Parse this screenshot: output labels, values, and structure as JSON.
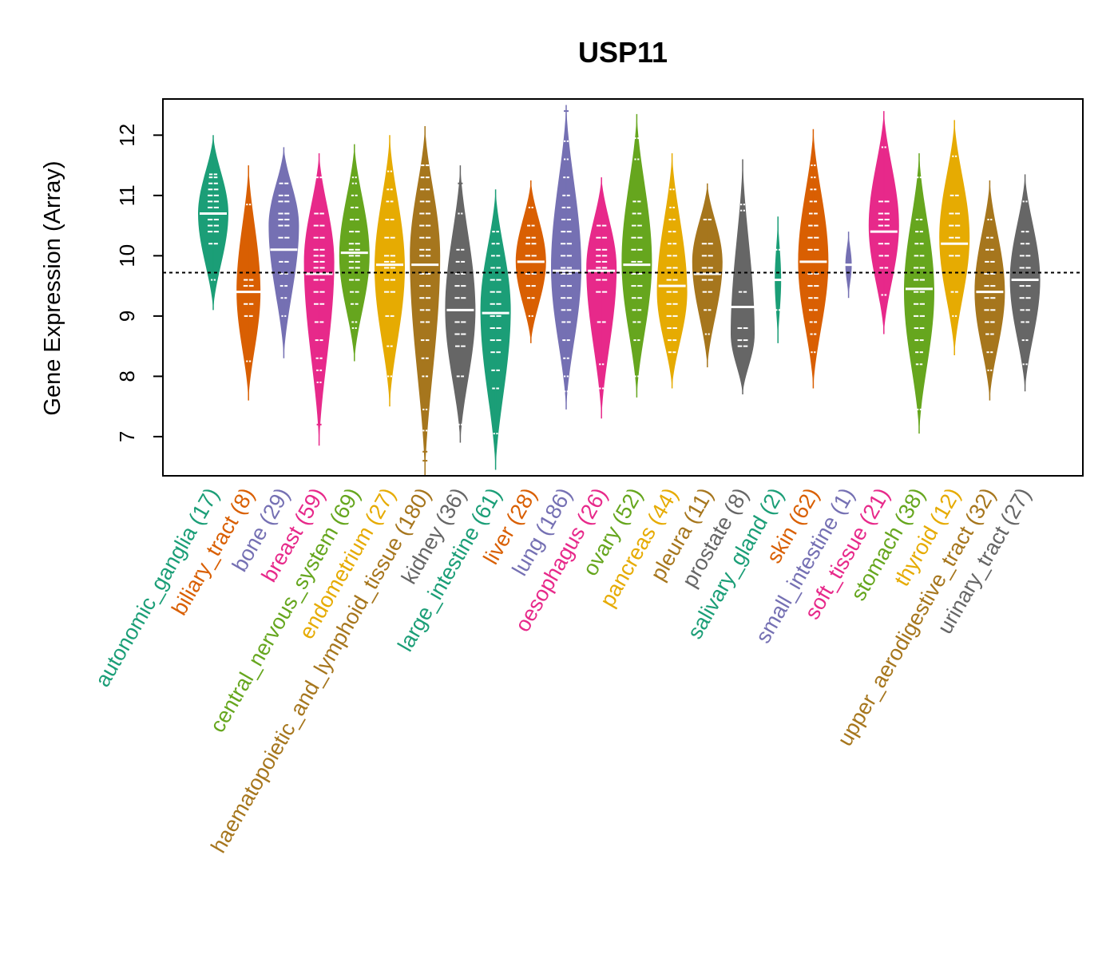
{
  "chart_data": {
    "type": "beanplot",
    "title": "USP11",
    "ylabel": "Gene Expression (Array)",
    "xlabel": "",
    "ylim": [
      6.35,
      12.6
    ],
    "yticks": [
      7,
      8,
      9,
      10,
      11,
      12
    ],
    "reference_line": 9.72,
    "categories": [
      {
        "name": "autonomic_ganglia",
        "n": 17,
        "label": "autonomic_ganglia (17)",
        "color": "#1B9E77",
        "min": 9.1,
        "max": 12.0,
        "mode": 10.7,
        "median": 10.7,
        "points": [
          9.6,
          10.2,
          10.4,
          10.5,
          10.6,
          10.7,
          10.8,
          10.9,
          11.0,
          11.1,
          11.2,
          11.3,
          11.35
        ]
      },
      {
        "name": "biliary_tract",
        "n": 8,
        "label": "biliary_tract (8)",
        "color": "#D95F02",
        "min": 7.6,
        "max": 11.5,
        "mode": 9.4,
        "median": 9.4,
        "points": [
          8.25,
          9.0,
          9.2,
          9.4,
          9.5,
          9.6,
          10.85
        ]
      },
      {
        "name": "bone",
        "n": 29,
        "label": "bone (29)",
        "color": "#7570B3",
        "min": 8.3,
        "max": 11.8,
        "mode": 10.5,
        "median": 10.1,
        "points": [
          9.0,
          9.3,
          9.5,
          9.7,
          9.9,
          10.1,
          10.3,
          10.5,
          10.6,
          10.7,
          10.9,
          11.0,
          11.2
        ]
      },
      {
        "name": "breast",
        "n": 59,
        "label": "breast (59)",
        "color": "#E7298A",
        "min": 6.85,
        "max": 11.7,
        "mode": 9.9,
        "median": 9.7,
        "points": [
          7.2,
          7.9,
          8.1,
          8.3,
          8.6,
          8.9,
          9.2,
          9.4,
          9.6,
          9.8,
          9.9,
          10.0,
          10.1,
          10.3,
          10.5,
          10.7,
          11.3
        ]
      },
      {
        "name": "central_nervous_system",
        "n": 69,
        "label": "central_nervous_system (69)",
        "color": "#66A61E",
        "min": 8.25,
        "max": 11.85,
        "mode": 10.0,
        "median": 10.05,
        "points": [
          8.8,
          8.9,
          9.2,
          9.4,
          9.6,
          9.8,
          9.9,
          10.0,
          10.1,
          10.2,
          10.4,
          10.6,
          10.8,
          11.0,
          11.2,
          11.3
        ]
      },
      {
        "name": "endometrium",
        "n": 27,
        "label": "endometrium (27)",
        "color": "#E6AB02",
        "min": 7.5,
        "max": 12.0,
        "mode": 9.8,
        "median": 9.85,
        "points": [
          8.0,
          8.5,
          9.0,
          9.4,
          9.6,
          9.8,
          9.9,
          10.0,
          10.3,
          10.6,
          10.9,
          11.1,
          11.4
        ]
      },
      {
        "name": "haematopoietic_and_lymphoid_tissue",
        "n": 180,
        "label": "haematopoietic_and_lymphoid_tissue (180)",
        "color": "#A6761D",
        "min": 6.35,
        "max": 12.15,
        "mode": 10.0,
        "median": 9.85,
        "points": [
          6.6,
          6.75,
          7.1,
          7.45,
          8.0,
          8.3,
          8.6,
          8.9,
          9.1,
          9.3,
          9.5,
          9.7,
          9.85,
          10.0,
          10.1,
          10.3,
          10.5,
          10.7,
          10.9,
          11.1,
          11.3,
          11.5
        ]
      },
      {
        "name": "kidney",
        "n": 36,
        "label": "kidney (36)",
        "color": "#666666",
        "min": 6.9,
        "max": 11.5,
        "mode": 9.1,
        "median": 9.1,
        "points": [
          7.2,
          8.0,
          8.5,
          8.7,
          8.9,
          9.1,
          9.3,
          9.5,
          9.7,
          9.9,
          10.1,
          10.7,
          11.2
        ]
      },
      {
        "name": "large_intestine",
        "n": 61,
        "label": "large_intestine (61)",
        "color": "#1B9E77",
        "min": 6.45,
        "max": 11.1,
        "mode": 9.1,
        "median": 9.05,
        "points": [
          7.05,
          7.8,
          8.1,
          8.4,
          8.6,
          8.8,
          9.0,
          9.2,
          9.4,
          9.6,
          9.8,
          10.0,
          10.2,
          10.4
        ]
      },
      {
        "name": "liver",
        "n": 28,
        "label": "liver (28)",
        "color": "#D95F02",
        "min": 8.55,
        "max": 11.25,
        "mode": 9.9,
        "median": 9.9,
        "points": [
          9.0,
          9.3,
          9.5,
          9.7,
          9.9,
          10.0,
          10.2,
          10.3,
          10.5,
          10.8
        ]
      },
      {
        "name": "lung",
        "n": 186,
        "label": "lung (186)",
        "color": "#7570B3",
        "min": 7.45,
        "max": 12.5,
        "mode": 9.8,
        "median": 9.75,
        "points": [
          7.75,
          8.0,
          8.3,
          8.6,
          8.9,
          9.1,
          9.3,
          9.5,
          9.7,
          9.8,
          10.0,
          10.2,
          10.4,
          10.6,
          10.8,
          11.0,
          11.3,
          11.6,
          11.9,
          12.4
        ]
      },
      {
        "name": "oesophagus",
        "n": 26,
        "label": "oesophagus (26)",
        "color": "#E7298A",
        "min": 7.3,
        "max": 11.3,
        "mode": 9.8,
        "median": 9.75,
        "points": [
          7.8,
          8.2,
          8.9,
          9.4,
          9.6,
          9.8,
          9.9,
          10.0,
          10.1,
          10.3,
          10.5
        ]
      },
      {
        "name": "ovary",
        "n": 52,
        "label": "ovary (52)",
        "color": "#66A61E",
        "min": 7.65,
        "max": 12.35,
        "mode": 9.9,
        "median": 9.85,
        "points": [
          8.0,
          8.6,
          8.9,
          9.1,
          9.3,
          9.5,
          9.7,
          9.9,
          10.1,
          10.3,
          10.5,
          10.7,
          10.9,
          11.6,
          11.95
        ]
      },
      {
        "name": "pancreas",
        "n": 44,
        "label": "pancreas (44)",
        "color": "#E6AB02",
        "min": 7.8,
        "max": 11.7,
        "mode": 9.4,
        "median": 9.5,
        "points": [
          8.4,
          8.6,
          8.8,
          9.0,
          9.2,
          9.4,
          9.6,
          9.8,
          10.0,
          10.2,
          10.4,
          10.6,
          10.8,
          11.1
        ]
      },
      {
        "name": "pleura",
        "n": 11,
        "label": "pleura (11)",
        "color": "#A6761D",
        "min": 8.15,
        "max": 11.2,
        "mode": 9.9,
        "median": 9.7,
        "points": [
          8.7,
          9.1,
          9.4,
          9.6,
          9.8,
          10.0,
          10.2,
          10.6
        ]
      },
      {
        "name": "prostate",
        "n": 8,
        "label": "prostate (8)",
        "color": "#666666",
        "min": 7.7,
        "max": 11.6,
        "mode": 8.7,
        "median": 9.15,
        "points": [
          8.5,
          8.6,
          8.8,
          9.4,
          10.75,
          10.85
        ]
      },
      {
        "name": "salivary_gland",
        "n": 2,
        "label": "salivary_gland (2)",
        "color": "#1B9E77",
        "min": 8.55,
        "max": 10.65,
        "mode": 9.6,
        "median": 9.6,
        "points": [
          9.1,
          10.1
        ]
      },
      {
        "name": "skin",
        "n": 62,
        "label": "skin (62)",
        "color": "#D95F02",
        "min": 7.8,
        "max": 12.1,
        "mode": 9.9,
        "median": 9.9,
        "points": [
          8.4,
          8.7,
          8.9,
          9.1,
          9.3,
          9.5,
          9.7,
          9.9,
          10.1,
          10.3,
          10.5,
          10.7,
          10.9,
          11.1,
          11.3,
          11.5
        ]
      },
      {
        "name": "small_intestine",
        "n": 1,
        "label": "small_intestine (1)",
        "color": "#7570B3",
        "min": 9.3,
        "max": 10.4,
        "mode": 9.85,
        "median": 9.85,
        "points": [
          9.85
        ]
      },
      {
        "name": "soft_tissue",
        "n": 21,
        "label": "soft_tissue (21)",
        "color": "#E7298A",
        "min": 8.7,
        "max": 12.4,
        "mode": 10.5,
        "median": 10.4,
        "points": [
          9.35,
          9.8,
          10.0,
          10.2,
          10.4,
          10.5,
          10.6,
          10.7,
          10.9,
          11.8
        ]
      },
      {
        "name": "stomach",
        "n": 38,
        "label": "stomach (38)",
        "color": "#66A61E",
        "min": 7.05,
        "max": 11.7,
        "mode": 9.4,
        "median": 9.45,
        "points": [
          7.45,
          8.2,
          8.4,
          8.6,
          8.8,
          9.0,
          9.2,
          9.4,
          9.6,
          9.8,
          10.0,
          10.2,
          10.4,
          10.6,
          11.3
        ]
      },
      {
        "name": "thyroid",
        "n": 12,
        "label": "thyroid (12)",
        "color": "#E6AB02",
        "min": 8.35,
        "max": 12.25,
        "mode": 10.3,
        "median": 10.2,
        "points": [
          9.0,
          9.4,
          10.0,
          10.2,
          10.3,
          10.5,
          10.7,
          11.0,
          11.65
        ]
      },
      {
        "name": "upper_aerodigestive_tract",
        "n": 32,
        "label": "upper_aerodigestive_tract (32)",
        "color": "#A6761D",
        "min": 7.6,
        "max": 11.25,
        "mode": 9.4,
        "median": 9.4,
        "points": [
          8.1,
          8.4,
          8.7,
          8.9,
          9.1,
          9.3,
          9.5,
          9.7,
          9.9,
          10.1,
          10.3,
          10.6
        ]
      },
      {
        "name": "urinary_tract",
        "n": 27,
        "label": "urinary_tract (27)",
        "color": "#666666",
        "min": 7.75,
        "max": 11.35,
        "mode": 9.6,
        "median": 9.6,
        "points": [
          8.2,
          8.6,
          8.9,
          9.1,
          9.3,
          9.5,
          9.6,
          9.8,
          10.0,
          10.2,
          10.4,
          10.9
        ]
      }
    ]
  }
}
